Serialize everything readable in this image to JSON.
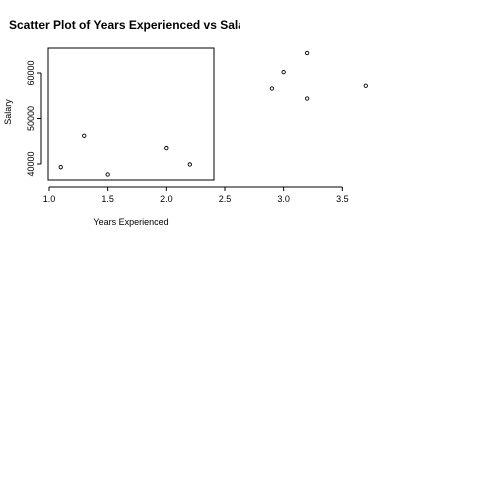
{
  "chart_data": {
    "type": "scatter",
    "title": "Scatter Plot of Years Experienced vs Sala",
    "xlabel": "Years Experienced",
    "ylabel": "Salary",
    "xlim": [
      1.0,
      3.8
    ],
    "ylim": [
      37000,
      65000
    ],
    "x_ticks": [
      "1.0",
      "1.5",
      "2.0",
      "2.5",
      "3.0",
      "3.5"
    ],
    "y_ticks": [
      "40000",
      "50000",
      "60000"
    ],
    "grid": false,
    "legend": "none",
    "points": [
      {
        "x": 1.1,
        "y": 39300
      },
      {
        "x": 1.3,
        "y": 46200
      },
      {
        "x": 1.5,
        "y": 37700
      },
      {
        "x": 2.0,
        "y": 43500
      },
      {
        "x": 2.2,
        "y": 39900
      },
      {
        "x": 2.9,
        "y": 56600
      },
      {
        "x": 3.0,
        "y": 60200
      },
      {
        "x": 3.2,
        "y": 54400
      },
      {
        "x": 3.2,
        "y": 64400
      },
      {
        "x": 3.7,
        "y": 57200
      }
    ]
  }
}
